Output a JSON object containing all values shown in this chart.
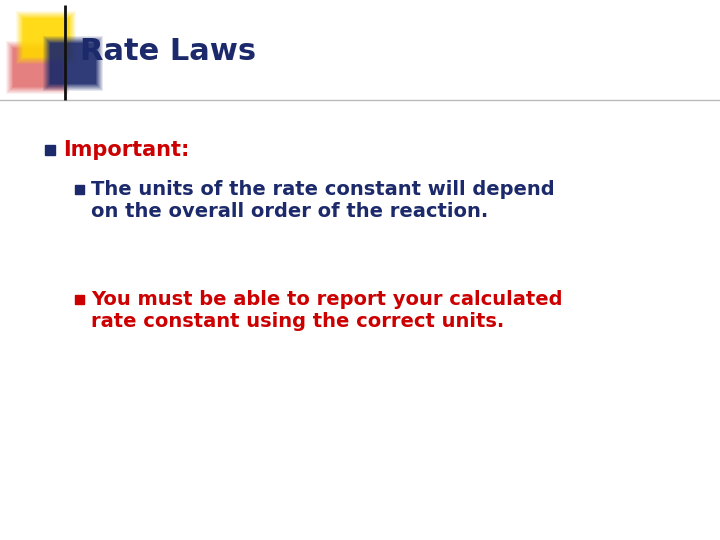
{
  "title": "Rate Laws",
  "title_color": "#1C2A6B",
  "title_fontsize": 22,
  "background_color": "#ffffff",
  "bullet1_text": "Important:",
  "bullet1_color": "#CC0000",
  "bullet1_fontsize": 15,
  "sub_bullet1_line1": "The units of the rate constant will depend",
  "sub_bullet1_line2": "on the overall order of the reaction.",
  "sub_bullet1_color": "#1C2A6B",
  "sub_bullet1_fontsize": 14,
  "sub_bullet2_line1": "You must be able to report your calculated",
  "sub_bullet2_line2": "rate constant using the correct units.",
  "sub_bullet2_color": "#CC0000",
  "sub_bullet2_fontsize": 14,
  "bullet_square_color": "#1C2A6B",
  "sub_bullet1_square_color": "#1C2A6B",
  "sub_bullet2_square_color": "#CC0000",
  "decor_yellow": "#FFD700",
  "decor_blue": "#1C2A6B",
  "decor_red": "#CC0000",
  "line_color": "#BBBBBB"
}
